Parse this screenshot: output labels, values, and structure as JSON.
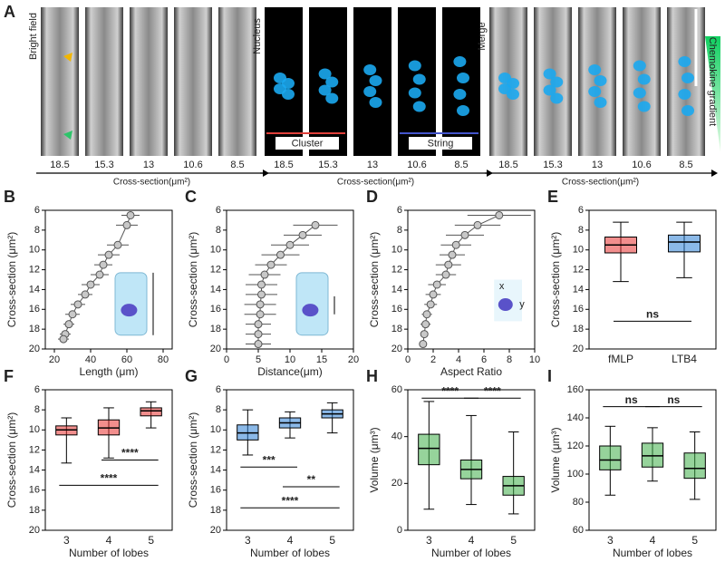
{
  "panel_a": {
    "label": "A",
    "groups": [
      {
        "title": "Bright field"
      },
      {
        "title": "Nucleus"
      },
      {
        "title": "Merge"
      }
    ],
    "ticks": [
      18.5,
      15.3,
      13,
      10.6,
      8.5
    ],
    "axis_label": "Cross-section(μm²)",
    "cluster": "Cluster",
    "string": "String",
    "gradient": "Chemokine gradient"
  },
  "chart_data": [
    {
      "type": "line",
      "panel": "B",
      "ylabel": "Cross-section (μm²)",
      "xlabel": "Length (μm)",
      "xlim": [
        15,
        85
      ],
      "xticks": [
        20,
        40,
        60,
        80
      ],
      "ylim": [
        20,
        6
      ],
      "yticks": [
        6,
        8,
        10,
        12,
        14,
        16,
        18,
        20
      ],
      "y": [
        6.5,
        7.5,
        9.5,
        10.5,
        11.5,
        12.5,
        13.5,
        14.5,
        15.5,
        16.5,
        17.5,
        18.5,
        19
      ],
      "x": [
        62,
        60,
        55,
        50,
        47,
        45,
        40,
        37,
        33,
        30,
        28,
        26,
        25
      ],
      "xerr": [
        5,
        6,
        6,
        6,
        5,
        5,
        5,
        4,
        4,
        4,
        3,
        3,
        3
      ],
      "color": "#c8c8c8"
    },
    {
      "type": "line",
      "panel": "C",
      "ylabel": "Cross-section (μm²)",
      "xlabel": "Distance(μm)",
      "xlim": [
        0,
        20
      ],
      "xticks": [
        0,
        5,
        10,
        15,
        20
      ],
      "ylim": [
        20,
        6
      ],
      "yticks": [
        6,
        8,
        10,
        12,
        14,
        16,
        18,
        20
      ],
      "y": [
        7.5,
        8.5,
        9.5,
        10.5,
        11.5,
        12.5,
        13.5,
        14.5,
        15.5,
        16.5,
        17.5,
        18.5,
        19.5
      ],
      "x": [
        14,
        12,
        10,
        8.5,
        7,
        6,
        5.5,
        5.5,
        5.3,
        5.3,
        5,
        5,
        5
      ],
      "xerr": [
        3.5,
        3,
        3,
        3,
        2.5,
        2.5,
        2.5,
        2.5,
        2.5,
        2.5,
        2,
        2,
        2
      ],
      "color": "#c8c8c8"
    },
    {
      "type": "line",
      "panel": "D",
      "ylabel": "Cross-section (μm²)",
      "xlabel": "Aspect Ratio",
      "xlim": [
        0,
        10
      ],
      "xticks": [
        0,
        2,
        4,
        6,
        8,
        10
      ],
      "ylim": [
        20,
        6
      ],
      "yticks": [
        6,
        8,
        10,
        12,
        14,
        16,
        18,
        20
      ],
      "y": [
        6.5,
        7.5,
        8.5,
        9.5,
        10.5,
        11.5,
        12.5,
        13.5,
        14.5,
        15.5,
        16.5,
        17.5,
        18.5,
        19.5
      ],
      "x": [
        7.2,
        5.5,
        4.5,
        3.8,
        3.5,
        3.2,
        3,
        2.3,
        2,
        1.8,
        1.5,
        1.4,
        1.3,
        1.2
      ],
      "xerr": [
        2.5,
        1.8,
        1.5,
        1.2,
        1,
        1,
        0.8,
        0.7,
        0.6,
        0.5,
        0.4,
        0.4,
        0.3,
        0.3
      ],
      "color": "#c8c8c8",
      "inset_labels": [
        "x",
        "y"
      ]
    },
    {
      "type": "box",
      "panel": "E",
      "ylabel": "Cross-section (μm²)",
      "ylim": [
        20,
        6
      ],
      "yticks": [
        6,
        8,
        10,
        12,
        14,
        16,
        18,
        20
      ],
      "categories": [
        "fMLP",
        "LTB4"
      ],
      "colors": [
        "#e8312f",
        "#2b7fd6"
      ],
      "boxes": [
        {
          "min": 7.2,
          "q1": 8.7,
          "median": 9.5,
          "q3": 10.3,
          "max": 13.2
        },
        {
          "min": 7.2,
          "q1": 8.5,
          "median": 9.2,
          "q3": 10.2,
          "max": 12.8
        }
      ],
      "annotations": [
        {
          "text": "ns",
          "between": [
            "fMLP",
            "LTB4"
          ]
        }
      ]
    },
    {
      "type": "box",
      "panel": "F",
      "ylabel": "Cross-section (μm²)",
      "xlabel": "Number of lobes",
      "ylim": [
        20,
        6
      ],
      "yticks": [
        6,
        8,
        10,
        12,
        14,
        16,
        18,
        20
      ],
      "categories": [
        "3",
        "4",
        "5"
      ],
      "colors": [
        "#e8312f",
        "#e8312f",
        "#e8312f"
      ],
      "boxes": [
        {
          "min": 8.8,
          "q1": 9.6,
          "median": 10,
          "q3": 10.5,
          "max": 13.3
        },
        {
          "min": 7.8,
          "q1": 9,
          "median": 9.8,
          "q3": 10.5,
          "max": 12.8
        },
        {
          "min": 7.2,
          "q1": 7.8,
          "median": 8.1,
          "q3": 8.6,
          "max": 9.8
        }
      ],
      "annotations": [
        {
          "text": "****",
          "between": [
            "4",
            "5"
          ]
        },
        {
          "text": "****",
          "between": [
            "3",
            "5"
          ]
        }
      ]
    },
    {
      "type": "box",
      "panel": "G",
      "ylabel": "Cross-section (μm²)",
      "xlabel": "Number of lobes",
      "ylim": [
        20,
        6
      ],
      "yticks": [
        6,
        8,
        10,
        12,
        14,
        16,
        18,
        20
      ],
      "categories": [
        "3",
        "4",
        "5"
      ],
      "colors": [
        "#2b7fd6",
        "#2b7fd6",
        "#2b7fd6"
      ],
      "boxes": [
        {
          "min": 8,
          "q1": 9.5,
          "median": 10.3,
          "q3": 11,
          "max": 12.5
        },
        {
          "min": 8.2,
          "q1": 8.8,
          "median": 9.3,
          "q3": 9.8,
          "max": 10.8
        },
        {
          "min": 7.3,
          "q1": 8,
          "median": 8.4,
          "q3": 8.8,
          "max": 10.3
        }
      ],
      "annotations": [
        {
          "text": "***",
          "between": [
            "3",
            "4"
          ]
        },
        {
          "text": "**",
          "between": [
            "4",
            "5"
          ]
        },
        {
          "text": "****",
          "between": [
            "3",
            "5"
          ]
        }
      ]
    },
    {
      "type": "box",
      "panel": "H",
      "ylabel": "Volume (μm³)",
      "xlabel": "Number of lobes",
      "ylim": [
        0,
        60
      ],
      "yticks": [
        0,
        20,
        40,
        60
      ],
      "categories": [
        "3",
        "4",
        "5"
      ],
      "colors": [
        "#3fae49",
        "#3fae49",
        "#3fae49"
      ],
      "boxes": [
        {
          "min": 9,
          "q1": 28,
          "median": 35,
          "q3": 41,
          "max": 55
        },
        {
          "min": 11,
          "q1": 22,
          "median": 26,
          "q3": 30,
          "max": 49
        },
        {
          "min": 7,
          "q1": 15,
          "median": 19,
          "q3": 23,
          "max": 42
        }
      ],
      "annotations": [
        {
          "text": "****",
          "between": [
            "3",
            "4"
          ]
        },
        {
          "text": "****",
          "between": [
            "4",
            "5"
          ]
        }
      ]
    },
    {
      "type": "box",
      "panel": "I",
      "ylabel": "Volume (μm³)",
      "xlabel": "Number of lobes",
      "ylim": [
        60,
        160
      ],
      "yticks": [
        60,
        80,
        100,
        120,
        140,
        160
      ],
      "categories": [
        "3",
        "4",
        "5"
      ],
      "colors": [
        "#3fae49",
        "#3fae49",
        "#3fae49"
      ],
      "boxes": [
        {
          "min": 85,
          "q1": 103,
          "median": 110,
          "q3": 120,
          "max": 134
        },
        {
          "min": 95,
          "q1": 105,
          "median": 113,
          "q3": 122,
          "max": 133
        },
        {
          "min": 82,
          "q1": 97,
          "median": 104,
          "q3": 115,
          "max": 130
        }
      ],
      "annotations": [
        {
          "text": "ns",
          "between": [
            "3",
            "4"
          ]
        },
        {
          "text": "ns",
          "between": [
            "4",
            "5"
          ]
        }
      ]
    }
  ]
}
